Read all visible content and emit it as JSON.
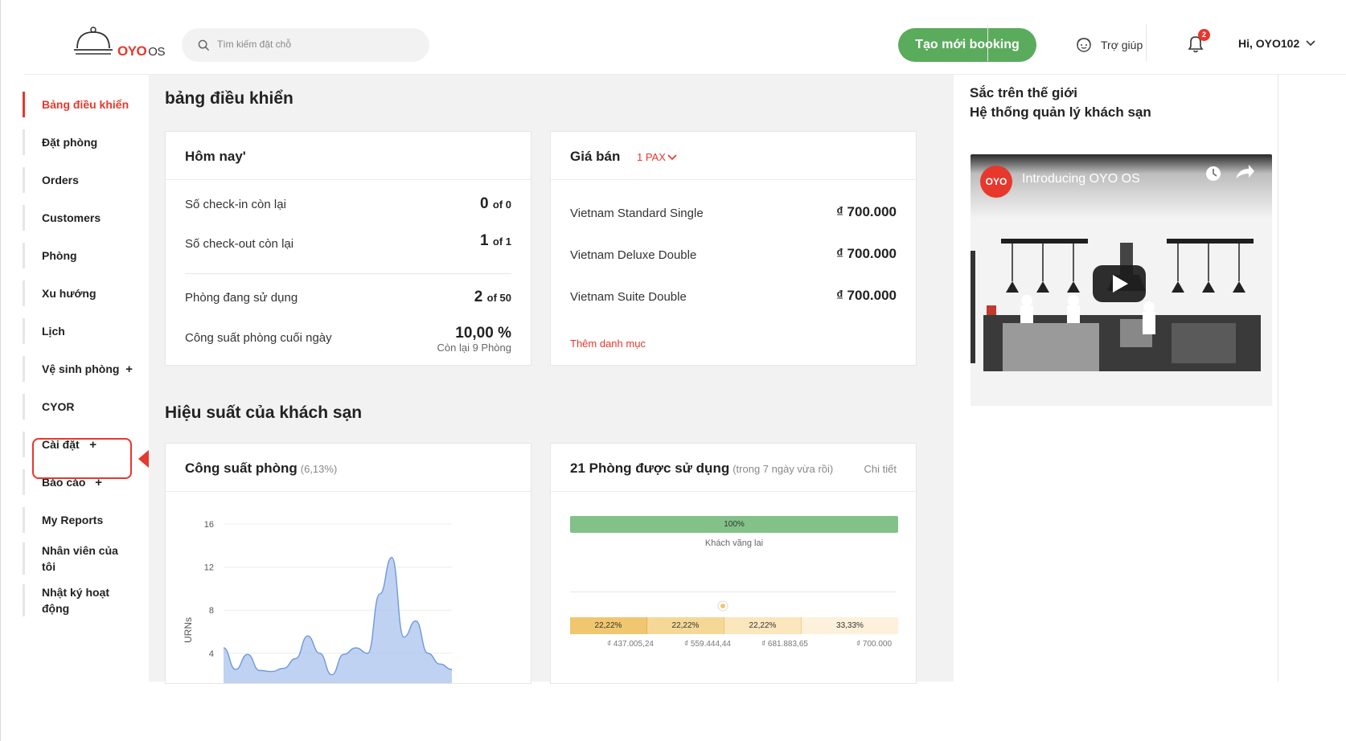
{
  "header": {
    "logo_mark": "OYO",
    "logo_suffix": "OS",
    "search_placeholder": "Tìm kiếm đặt chỗ",
    "create_button": "Tạo mới booking",
    "help_label": "Trợ giúp",
    "notification_count": "2",
    "user_greeting": "Hi, OYO102"
  },
  "sidebar": {
    "items": [
      {
        "label": "Bảng điều khiển",
        "active": true
      },
      {
        "label": "Đặt phòng"
      },
      {
        "label": "Orders"
      },
      {
        "label": "Customers"
      },
      {
        "label": "Phòng"
      },
      {
        "label": "Xu hướng"
      },
      {
        "label": "Lịch"
      },
      {
        "label": "Vệ sinh phòng",
        "expand": "+"
      },
      {
        "label": "CYOR"
      },
      {
        "label": "Cài đặt",
        "expand": "+"
      },
      {
        "label": "Báo cáo",
        "expand": "+"
      },
      {
        "label": "My Reports"
      },
      {
        "label": "Nhân viên của tôi"
      },
      {
        "label": "Nhật ký hoạt động"
      }
    ]
  },
  "main": {
    "page_title": "bảng điều khiển",
    "today": {
      "title": "Hôm nay'",
      "checkin_label": "Số check-in còn lại",
      "checkin_value": "0",
      "checkin_of": "of 0",
      "checkout_label": "Số check-out còn lại",
      "checkout_value": "1",
      "checkout_of": "of 1",
      "occupied_label": "Phòng đang sử dụng",
      "occupied_value": "2",
      "occupied_of": "of 50",
      "eod_label": "Công suất phòng cuối ngày",
      "eod_value": "10,00 %",
      "eod_sub": "Còn lại 9 Phòng"
    },
    "pricing": {
      "title": "Giá bán",
      "pax": "1 PAX",
      "rooms": [
        {
          "name": "Vietnam Standard Single",
          "price": "₫ 700.000"
        },
        {
          "name": "Vietnam Deluxe Double",
          "price": "₫ 700.000"
        },
        {
          "name": "Vietnam Suite Double",
          "price": "₫ 700.000"
        }
      ],
      "add_category": "Thêm danh mục"
    },
    "performance_title": "Hiệu suất của khách sạn",
    "occupancy_card": {
      "title": "Công suất phòng",
      "subtitle": "(6,13%)"
    },
    "rooms_used_card": {
      "title": "21 Phòng được sử dụng",
      "subtitle": "(trong 7 ngày vừa rồi)",
      "detail_link": "Chi tiết",
      "source_bar_label": "100%",
      "source_bar_caption": "Khách vãng lai",
      "segments": [
        {
          "pct": "22,22%",
          "price": "₫ 437.005,24",
          "color": "#f0c76e"
        },
        {
          "pct": "22,22%",
          "price": "₫ 559.444,44",
          "color": "#f6d896"
        },
        {
          "pct": "22,22%",
          "price": "₫ 681.883,65",
          "color": "#fbe6bd"
        },
        {
          "pct": "33,33%",
          "price": "₫ 700.000",
          "color": "#fdf1dc"
        }
      ]
    }
  },
  "chart_data": {
    "type": "area",
    "ylabel": "URNs",
    "y_ticks": [
      "16",
      "12",
      "8",
      "4"
    ],
    "ylim": [
      0,
      16
    ],
    "values": [
      4.5,
      2.5,
      3.9,
      2.4,
      2.3,
      2.6,
      3.5,
      5.6,
      4.0,
      2.0,
      3.9,
      4.5,
      4.0,
      9.5,
      12.9,
      5.5,
      7.0,
      4.0,
      3.0,
      2.5
    ]
  },
  "right_panel": {
    "promo_line1": "Sắc trên thế giới",
    "promo_line2": "Hệ thống quản lý khách sạn",
    "video_badge": "OYO",
    "video_title": "Introducing OYO OS"
  },
  "colors": {
    "brand_red": "#e8372c",
    "brand_green": "#5bab5d",
    "chart_fill": "#a9c3ee",
    "chart_stroke": "#6f97dd"
  }
}
